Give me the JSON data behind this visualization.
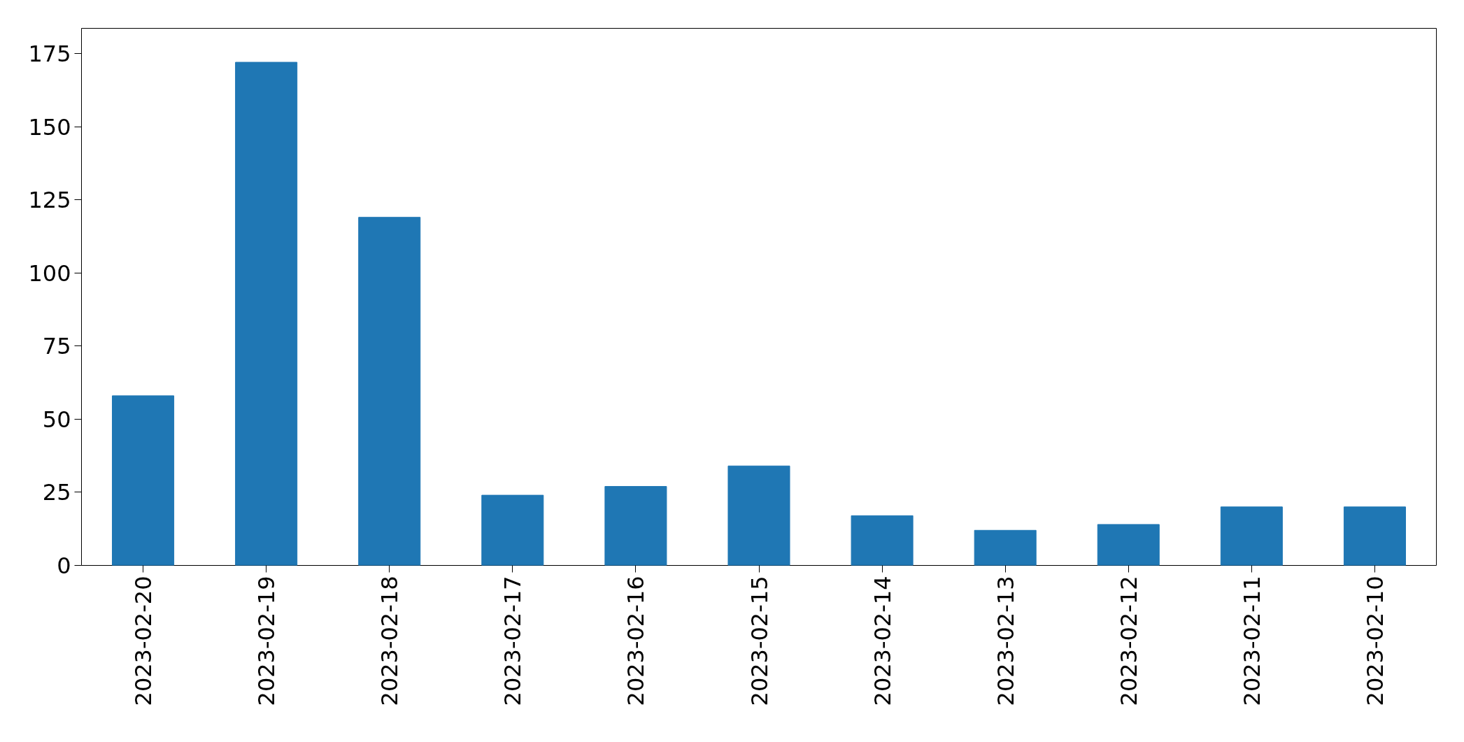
{
  "chart_data": {
    "type": "bar",
    "categories": [
      "2023-02-20",
      "2023-02-19",
      "2023-02-18",
      "2023-02-17",
      "2023-02-16",
      "2023-02-15",
      "2023-02-14",
      "2023-02-13",
      "2023-02-12",
      "2023-02-11",
      "2023-02-10"
    ],
    "values": [
      58,
      172,
      119,
      24,
      27,
      34,
      17,
      12,
      14,
      20,
      20
    ],
    "color": "#1f77b4",
    "yticks": [
      0,
      25,
      50,
      75,
      100,
      125,
      150,
      175
    ],
    "ylim": [
      0,
      183.6
    ]
  }
}
